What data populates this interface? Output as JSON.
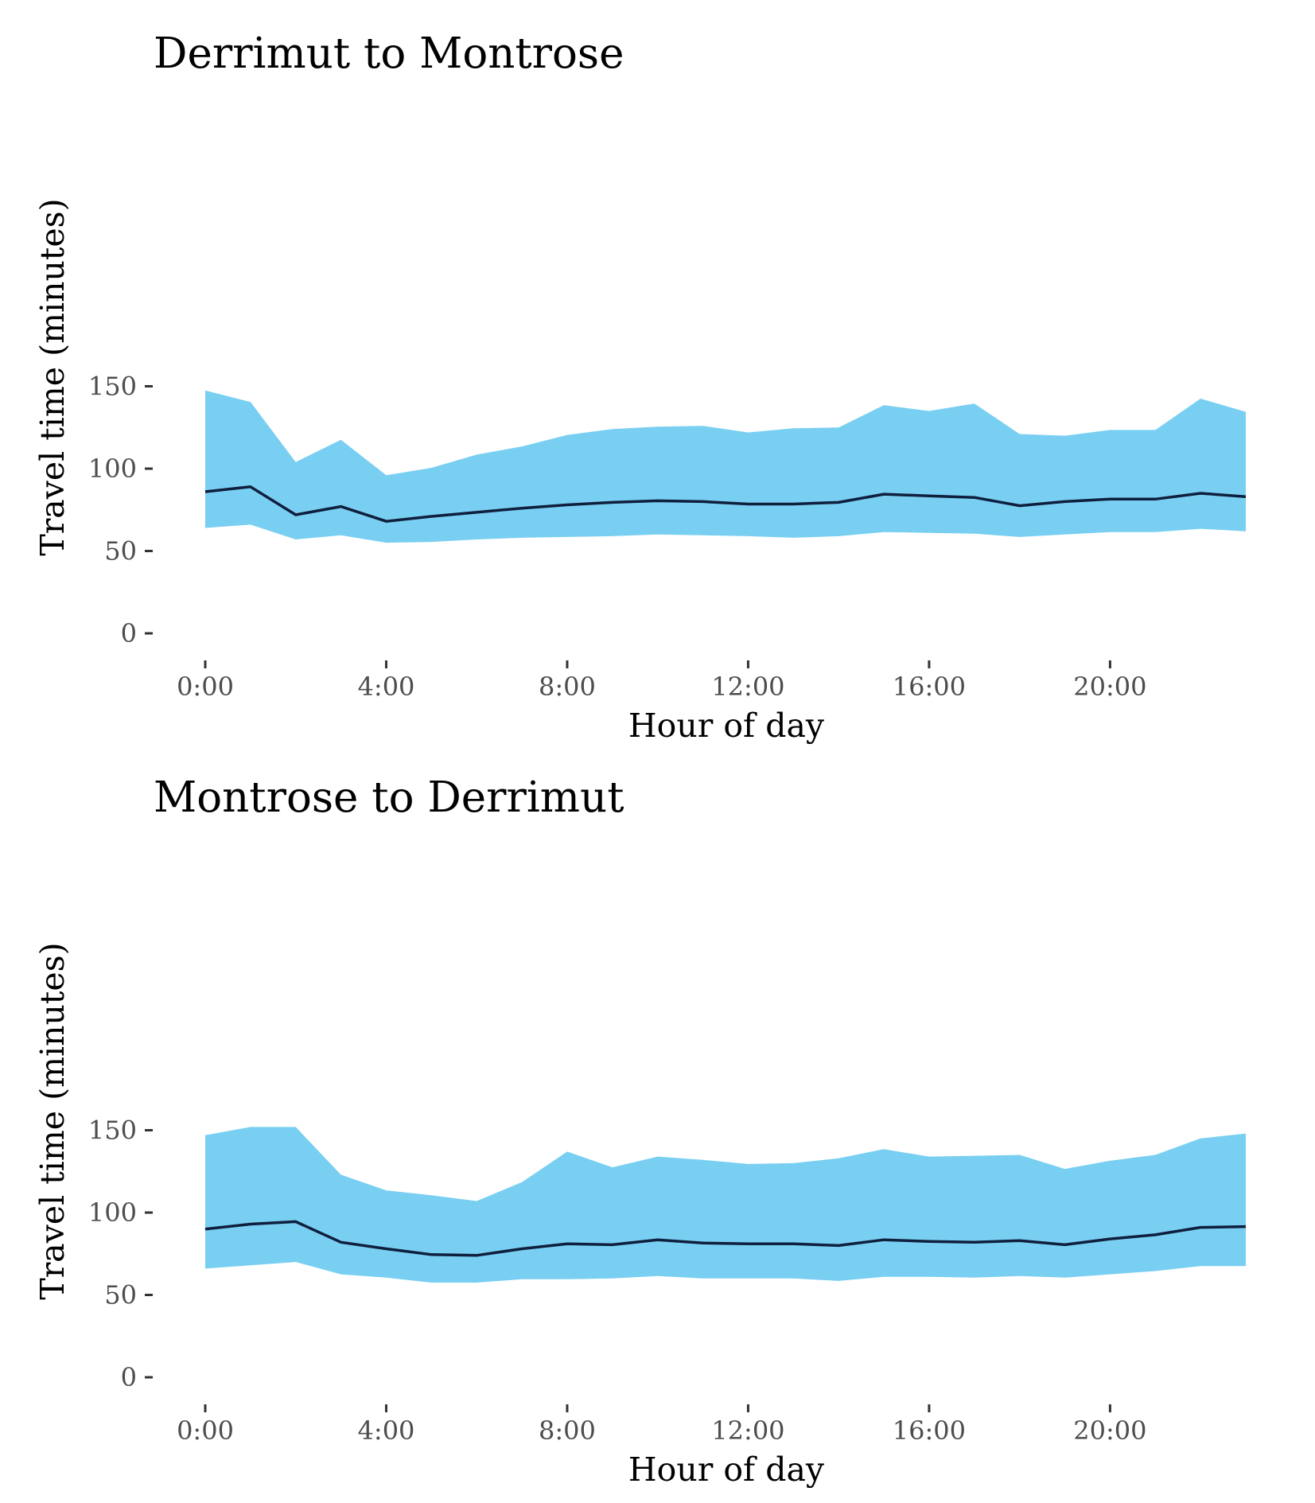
{
  "chart_data": [
    {
      "type": "area",
      "title": "Derrimut to Montrose",
      "xlabel": "Hour of day",
      "ylabel": "Travel time (minutes)",
      "xlim": [
        0,
        23
      ],
      "ylim": [
        0,
        160
      ],
      "x_ticks": [
        0,
        4,
        8,
        12,
        16,
        20
      ],
      "x_tick_labels": [
        "0:00",
        "4:00",
        "8:00",
        "12:00",
        "16:00",
        "20:00"
      ],
      "y_ticks": [
        0,
        50,
        100,
        150
      ],
      "y_tick_labels": [
        "0",
        "50",
        "100",
        "150"
      ],
      "grid": false,
      "x": [
        0,
        1,
        2,
        3,
        4,
        5,
        6,
        7,
        8,
        9,
        10,
        11,
        12,
        13,
        14,
        15,
        16,
        17,
        18,
        19,
        20,
        21,
        22,
        23
      ],
      "series": [
        {
          "kind": "band",
          "color": "#79cff2",
          "upper": [
            147.5,
            140.5,
            104,
            117.5,
            96,
            100.5,
            108.5,
            113.5,
            120.5,
            124,
            125.5,
            126,
            122,
            124.5,
            125,
            138.5,
            135,
            139.5,
            121,
            120,
            123.5,
            123.5,
            142.5,
            134.5
          ],
          "lower": [
            64,
            66,
            57,
            59.5,
            55,
            55.5,
            57,
            58,
            58.5,
            59,
            60,
            59.5,
            59,
            58,
            59,
            61.5,
            61,
            60.5,
            58.5,
            60,
            61.5,
            61.5,
            63.5,
            62
          ]
        },
        {
          "kind": "line",
          "color": "#0f1f3d",
          "values": [
            86,
            89,
            72,
            77,
            68,
            71,
            73.5,
            76,
            78,
            79.5,
            80.5,
            80,
            78.5,
            78.5,
            79.5,
            84.5,
            83.5,
            82.5,
            77.5,
            80,
            81.5,
            81.5,
            85,
            83
          ]
        }
      ]
    },
    {
      "type": "area",
      "title": "Montrose to Derrimut",
      "xlabel": "Hour of day",
      "ylabel": "Travel time (minutes)",
      "xlim": [
        0,
        23
      ],
      "ylim": [
        0,
        160
      ],
      "x_ticks": [
        0,
        4,
        8,
        12,
        16,
        20
      ],
      "x_tick_labels": [
        "0:00",
        "4:00",
        "8:00",
        "12:00",
        "16:00",
        "20:00"
      ],
      "y_ticks": [
        0,
        50,
        100,
        150
      ],
      "y_tick_labels": [
        "0",
        "50",
        "100",
        "150"
      ],
      "grid": false,
      "x": [
        0,
        1,
        2,
        3,
        4,
        5,
        6,
        7,
        8,
        9,
        10,
        11,
        12,
        13,
        14,
        15,
        16,
        17,
        18,
        19,
        20,
        21,
        22,
        23
      ],
      "series": [
        {
          "kind": "band",
          "color": "#79cff2",
          "upper": [
            147,
            152,
            152,
            123,
            113.5,
            110.5,
            107,
            118.5,
            137,
            127.5,
            134,
            132,
            129.5,
            130,
            133,
            138.5,
            134,
            134.5,
            135,
            126.5,
            131.5,
            135,
            145,
            148
          ],
          "lower": [
            66,
            68,
            70,
            62.5,
            60.5,
            57.5,
            57.5,
            59.5,
            59.5,
            60,
            61.5,
            60,
            60,
            60,
            58.5,
            61,
            61,
            60.5,
            61.5,
            60.5,
            62.5,
            64.5,
            67.5,
            67.5
          ]
        },
        {
          "kind": "line",
          "color": "#0f1f3d",
          "values": [
            90,
            93,
            94.5,
            82,
            78,
            74.5,
            74,
            78,
            81,
            80.5,
            83.5,
            81.5,
            81,
            81,
            80,
            83.5,
            82.5,
            82,
            83,
            80.5,
            84,
            86.5,
            91,
            91.5
          ]
        }
      ]
    }
  ]
}
